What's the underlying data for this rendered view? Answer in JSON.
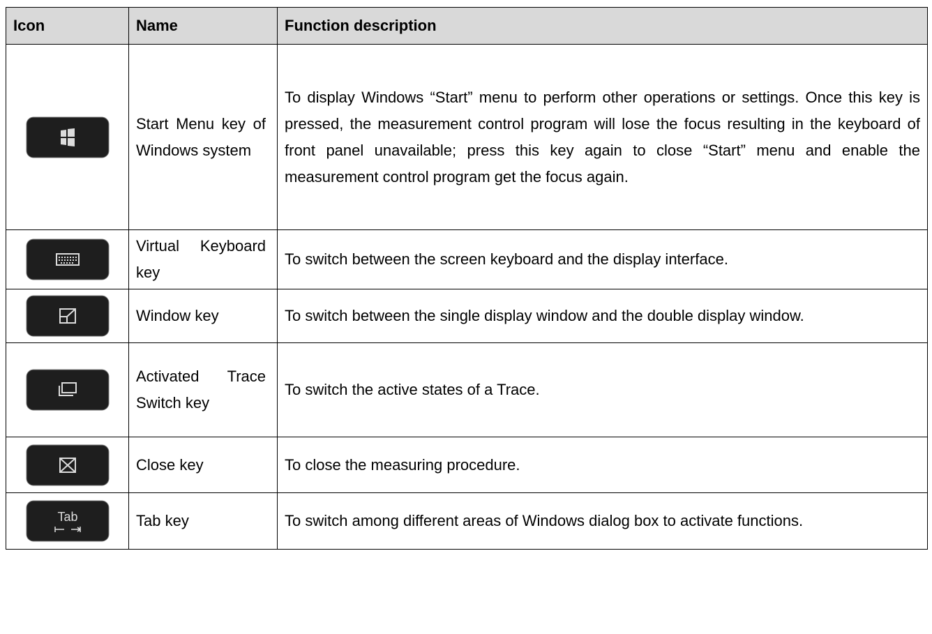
{
  "table": {
    "header": [
      "Icon",
      "Name",
      "Function description"
    ],
    "rows": [
      {
        "name": "Start Menu key of Windows system",
        "description": "To display Windows “Start” menu to perform other operations or settings. Once this key is pressed, the measurement control program will lose the focus resulting in the keyboard of front panel unavailable; press this key again to close “Start” menu and enable the measurement control program get the focus again."
      },
      {
        "name": "Virtual Keyboard key",
        "description": "To switch between the screen keyboard and the display interface."
      },
      {
        "name": "Window key",
        "description": "To switch between the single display window and the double display window."
      },
      {
        "name": "Activated Trace Switch key",
        "description": "To switch the active states of a Trace."
      },
      {
        "name": "Close key",
        "description": "To close the measuring procedure."
      },
      {
        "name": "Tab key",
        "icon_label": "Tab",
        "description": "To switch among different areas of Windows dialog box to activate functions."
      }
    ]
  }
}
